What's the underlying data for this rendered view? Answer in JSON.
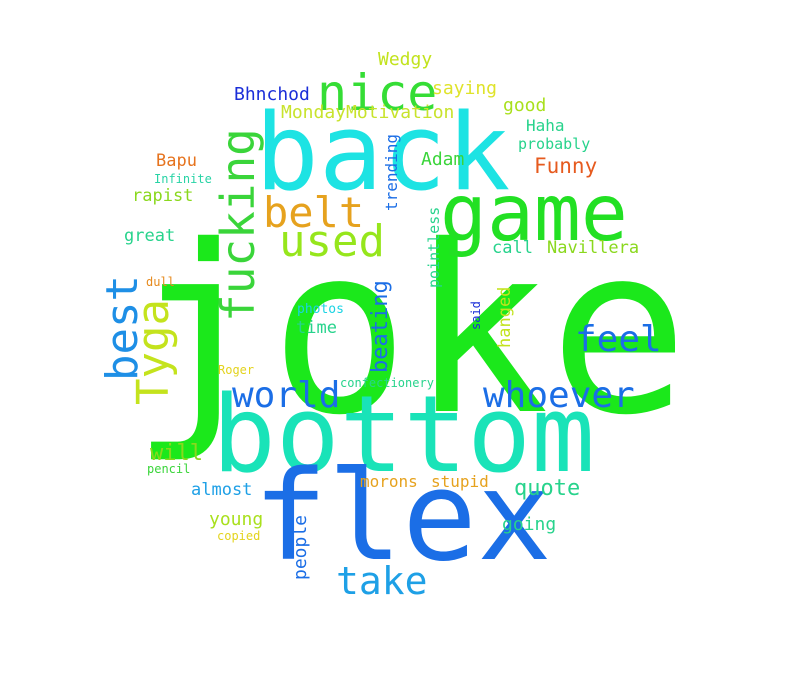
{
  "words": [
    {
      "id": "joke",
      "text": "joke",
      "color": "#1be81b"
    },
    {
      "id": "bottom",
      "text": "bottom",
      "color": "#19e3b8"
    },
    {
      "id": "flex",
      "text": "flex",
      "color": "#1b6ee6"
    },
    {
      "id": "back",
      "text": "back",
      "color": "#1de3e3"
    },
    {
      "id": "game",
      "text": "game",
      "color": "#22e023"
    },
    {
      "id": "nice",
      "text": "nice",
      "color": "#35dd35"
    },
    {
      "id": "fucking",
      "text": "fucking",
      "color": "#3ad53a"
    },
    {
      "id": "belt",
      "text": "belt",
      "color": "#e6a21e"
    },
    {
      "id": "used",
      "text": "used",
      "color": "#96e61c"
    },
    {
      "id": "best",
      "text": "best",
      "color": "#1e8fe6"
    },
    {
      "id": "tyga",
      "text": "Tyga",
      "color": "#c4e31d"
    },
    {
      "id": "feel",
      "text": "feel",
      "color": "#1b6ee6"
    },
    {
      "id": "world",
      "text": "world",
      "color": "#1b6ee6"
    },
    {
      "id": "whoever",
      "text": "whoever",
      "color": "#1b6ee6"
    },
    {
      "id": "take",
      "text": "take",
      "color": "#1ea0e6"
    },
    {
      "id": "beating",
      "text": "beating",
      "color": "#1b6ee6"
    },
    {
      "id": "quote",
      "text": "quote",
      "color": "#27d38c"
    },
    {
      "id": "wedgy",
      "text": "Wedgy",
      "color": "#c2e31d"
    },
    {
      "id": "bhnchod",
      "text": "Bhnchod",
      "color": "#1b2ed8"
    },
    {
      "id": "saying",
      "text": "saying",
      "color": "#dfe32a"
    },
    {
      "id": "good",
      "text": "good",
      "color": "#a9e01d"
    },
    {
      "id": "mondaymotivation",
      "text": "MondayMotivation",
      "color": "#c8e32c"
    },
    {
      "id": "haha",
      "text": "Haha",
      "color": "#27d38c"
    },
    {
      "id": "probably",
      "text": "probably",
      "color": "#27d38c"
    },
    {
      "id": "trending",
      "text": "trending",
      "color": "#1b6ee6"
    },
    {
      "id": "bapu",
      "text": "Bapu",
      "color": "#e6731e"
    },
    {
      "id": "adam",
      "text": "Adam",
      "color": "#3ad53a"
    },
    {
      "id": "funny",
      "text": "Funny",
      "color": "#e65a1e"
    },
    {
      "id": "infinite",
      "text": "Infinite",
      "color": "#27d3a5"
    },
    {
      "id": "rapist",
      "text": "rapist",
      "color": "#8ad81d"
    },
    {
      "id": "pointless",
      "text": "pointless",
      "color": "#27d38c"
    },
    {
      "id": "great",
      "text": "great",
      "color": "#27d38c"
    },
    {
      "id": "call",
      "text": "call",
      "color": "#27d38c"
    },
    {
      "id": "navillera",
      "text": "Navillera",
      "color": "#8ad81d"
    },
    {
      "id": "dull",
      "text": "dull",
      "color": "#e68a1e"
    },
    {
      "id": "said",
      "text": "said",
      "color": "#1b2ed8"
    },
    {
      "id": "photos",
      "text": "photos",
      "color": "#19d3e3"
    },
    {
      "id": "time",
      "text": "time",
      "color": "#27d38c"
    },
    {
      "id": "hanged",
      "text": "hanged",
      "color": "#c2e31d"
    },
    {
      "id": "roger",
      "text": "Roger",
      "color": "#e3d31d"
    },
    {
      "id": "confectionery",
      "text": "confectionery",
      "color": "#27d38c"
    },
    {
      "id": "will",
      "text": "will",
      "color": "#8ad81d"
    },
    {
      "id": "pencil",
      "text": "pencil",
      "color": "#3ad53a"
    },
    {
      "id": "almost",
      "text": "almost",
      "color": "#1ea0e6"
    },
    {
      "id": "morons",
      "text": "morons",
      "color": "#e6a21e"
    },
    {
      "id": "stupid",
      "text": "stupid",
      "color": "#e6a21e"
    },
    {
      "id": "young",
      "text": "young",
      "color": "#a9e01d"
    },
    {
      "id": "copied",
      "text": "copied",
      "color": "#e3d31d"
    },
    {
      "id": "people",
      "text": "people",
      "color": "#1b6ee6"
    },
    {
      "id": "going",
      "text": "going",
      "color": "#27d38c"
    }
  ]
}
